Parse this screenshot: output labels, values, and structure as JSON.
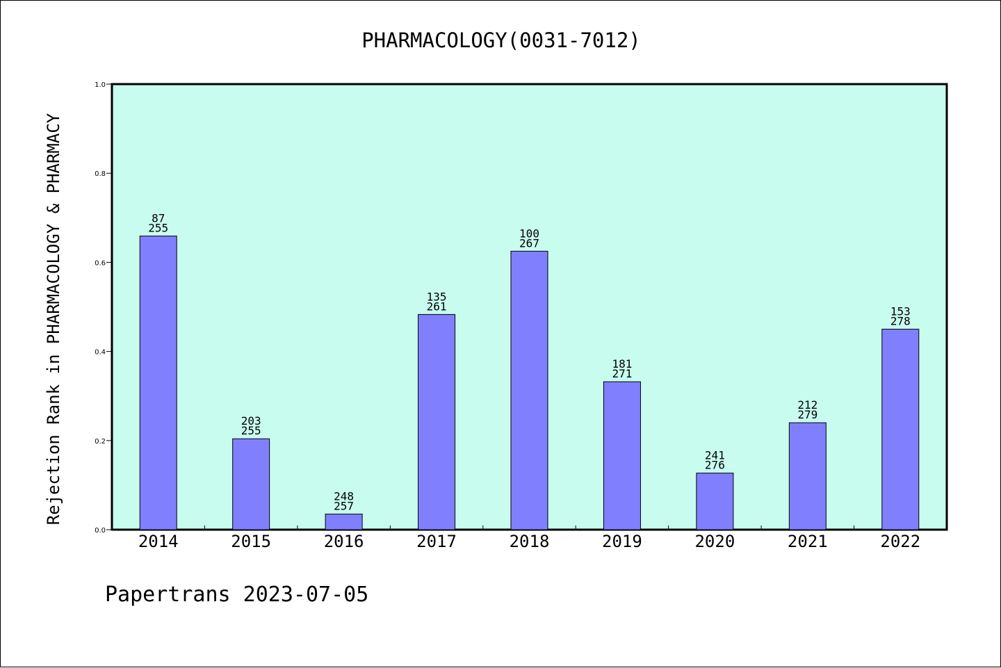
{
  "chart_data": {
    "type": "bar",
    "title": "PHARMACOLOGY(0031-7012)",
    "xlabel": "",
    "ylabel": "Rejection Rank in PHARMACOLOGY & PHARMACY",
    "ylim": [
      0,
      1.0
    ],
    "yticks": [
      "0.0",
      "0.2",
      "0.4",
      "0.6",
      "0.8",
      "1.0"
    ],
    "categories": [
      "2014",
      "2015",
      "2016",
      "2017",
      "2018",
      "2019",
      "2020",
      "2021",
      "2022"
    ],
    "values": [
      0.659,
      0.204,
      0.035,
      0.483,
      0.625,
      0.332,
      0.127,
      0.24,
      0.45
    ],
    "labels": [
      [
        "87",
        "255"
      ],
      [
        "203",
        "255"
      ],
      [
        "248",
        "257"
      ],
      [
        "135",
        "261"
      ],
      [
        "100",
        "267"
      ],
      [
        "181",
        "271"
      ],
      [
        "241",
        "276"
      ],
      [
        "212",
        "279"
      ],
      [
        "153",
        "278"
      ]
    ],
    "grid": false,
    "colors": {
      "plot_background": "#c8fcee",
      "bar_fill": "#8080ff",
      "bar_stroke": "#000000"
    }
  },
  "footer": {
    "text": "Papertrans 2023-07-05"
  }
}
